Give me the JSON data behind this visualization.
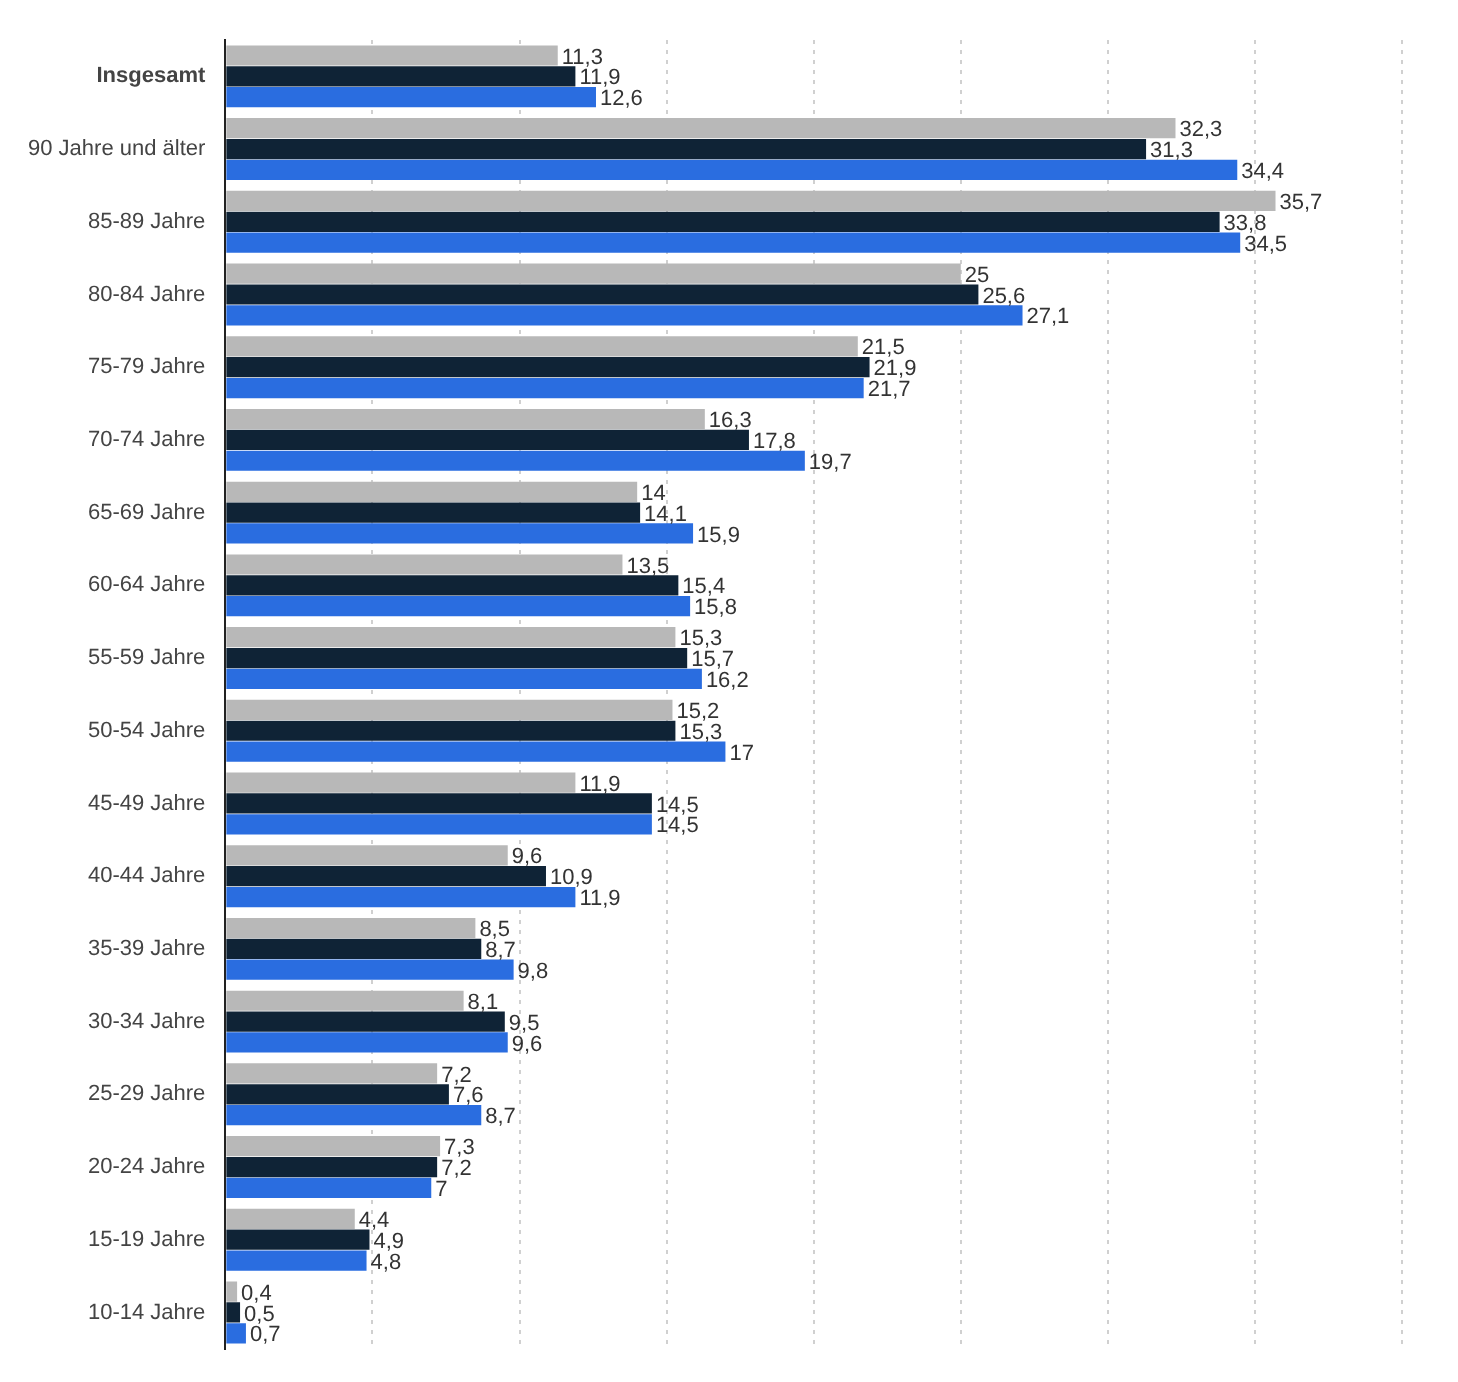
{
  "chart_data": {
    "type": "bar",
    "orientation": "horizontal",
    "categories": [
      "Insgesamt",
      "90 Jahre und älter",
      "85-89 Jahre",
      "80-84 Jahre",
      "75-79 Jahre",
      "70-74 Jahre",
      "65-69 Jahre",
      "60-64 Jahre",
      "55-59 Jahre",
      "50-54 Jahre",
      "45-49 Jahre",
      "40-44 Jahre",
      "35-39 Jahre",
      "30-34 Jahre",
      "25-29 Jahre",
      "20-24 Jahre",
      "15-19 Jahre",
      "10-14 Jahre"
    ],
    "series": [
      {
        "color": "#b8b8b8",
        "values": [
          11.3,
          32.3,
          35.7,
          25,
          21.5,
          16.3,
          14,
          13.5,
          15.3,
          15.2,
          11.9,
          9.6,
          8.5,
          8.1,
          7.2,
          7.3,
          4.4,
          0.4
        ],
        "value_labels": [
          "11,3",
          "32,3",
          "35,7",
          "25",
          "21,5",
          "16,3",
          "14",
          "13,5",
          "15,3",
          "15,2",
          "11,9",
          "9,6",
          "8,5",
          "8,1",
          "7,2",
          "7,3",
          "4,4",
          "0,4"
        ]
      },
      {
        "color": "#0f2336",
        "values": [
          11.9,
          31.3,
          33.8,
          25.6,
          21.9,
          17.8,
          14.1,
          15.4,
          15.7,
          15.3,
          14.5,
          10.9,
          8.7,
          9.5,
          7.6,
          7.2,
          4.9,
          0.5
        ],
        "value_labels": [
          "11,9",
          "31,3",
          "33,8",
          "25,6",
          "21,9",
          "17,8",
          "14,1",
          "15,4",
          "15,7",
          "15,3",
          "14,5",
          "10,9",
          "8,7",
          "9,5",
          "7,6",
          "7,2",
          "4,9",
          "0,5"
        ]
      },
      {
        "color": "#2a6de0",
        "values": [
          12.6,
          34.4,
          34.5,
          27.1,
          21.7,
          19.7,
          15.9,
          15.8,
          16.2,
          17,
          14.5,
          11.9,
          9.8,
          9.6,
          8.7,
          7,
          4.8,
          0.7
        ],
        "value_labels": [
          "12,6",
          "34,4",
          "34,5",
          "27,1",
          "21,7",
          "19,7",
          "15,9",
          "15,8",
          "16,2",
          "17",
          "14,5",
          "11,9",
          "9,8",
          "9,6",
          "8,7",
          "7",
          "4,8",
          "0,7"
        ]
      }
    ],
    "xlim": [
      0,
      40
    ],
    "xticks": [
      {
        "value": 0,
        "label": null
      },
      {
        "value": 5,
        "label": null
      },
      {
        "value": 10,
        "label": null
      },
      {
        "value": 15,
        "label": null
      },
      {
        "value": 20,
        "label": null
      },
      {
        "value": 25,
        "label": null
      },
      {
        "value": 30,
        "label": null
      },
      {
        "value": 35,
        "label": null
      },
      {
        "value": 40,
        "label": null
      }
    ],
    "tick_labels": "y",
    "grid": "x",
    "legend": false
  }
}
